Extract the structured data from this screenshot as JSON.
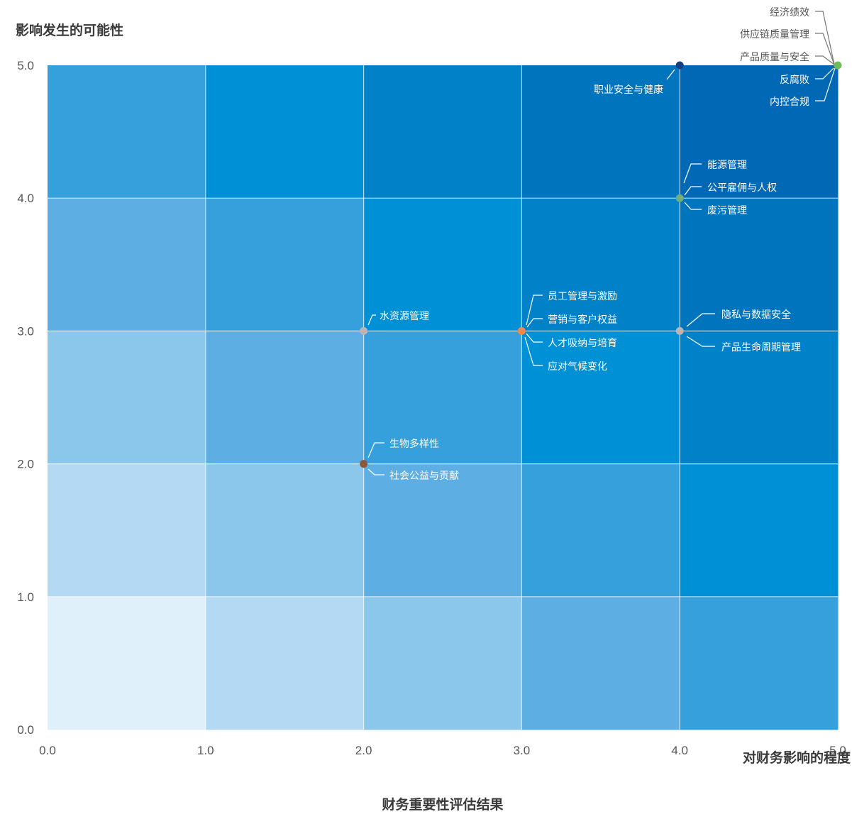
{
  "chart_data": {
    "type": "scatter",
    "title": "财务重要性评估结果",
    "ylabel": "影响发生的可能性",
    "xlabel": "对财务影响的程度",
    "xlim": [
      0,
      5
    ],
    "ylim": [
      0,
      5
    ],
    "x_ticks": [
      "0.0",
      "1.0",
      "2.0",
      "3.0",
      "4.0",
      "5.0"
    ],
    "y_ticks": [
      "0.0",
      "1.0",
      "2.0",
      "3.0",
      "4.0",
      "5.0"
    ],
    "grid": true,
    "background_scale": [
      "#DFF0FB",
      "#B3D9F3",
      "#8BC6EB",
      "#5CAEE3",
      "#35A0DB",
      "#0090D5",
      "#0081C8",
      "#0074BD",
      "#0068B4"
    ],
    "points": [
      {
        "x": 5,
        "y": 5,
        "color": "#6DBE5A",
        "labels": [
          "经济绩效",
          "供应链质量管理",
          "产品质量与安全",
          "反腐败",
          "内控合规"
        ]
      },
      {
        "x": 4,
        "y": 5,
        "color": "#1F3D7A",
        "labels": [
          "职业安全与健康"
        ]
      },
      {
        "x": 4,
        "y": 4,
        "color": "#6FAE7C",
        "labels": [
          "能源管理",
          "公平雇佣与人权",
          "废污管理"
        ]
      },
      {
        "x": 4,
        "y": 3,
        "color": "#B7B7B7",
        "labels": [
          "隐私与数据安全",
          "产品生命周期管理"
        ]
      },
      {
        "x": 3,
        "y": 3,
        "color": "#EE8A4E",
        "labels": [
          "员工管理与激励",
          "营销与客户权益",
          "人才吸纳与培育",
          "应对气候变化"
        ]
      },
      {
        "x": 2,
        "y": 3,
        "color": "#B7B7B7",
        "labels": [
          "水资源管理"
        ]
      },
      {
        "x": 2,
        "y": 2,
        "color": "#8A5A3A",
        "labels": [
          "生物多样性",
          "社会公益与贡献"
        ]
      }
    ]
  }
}
